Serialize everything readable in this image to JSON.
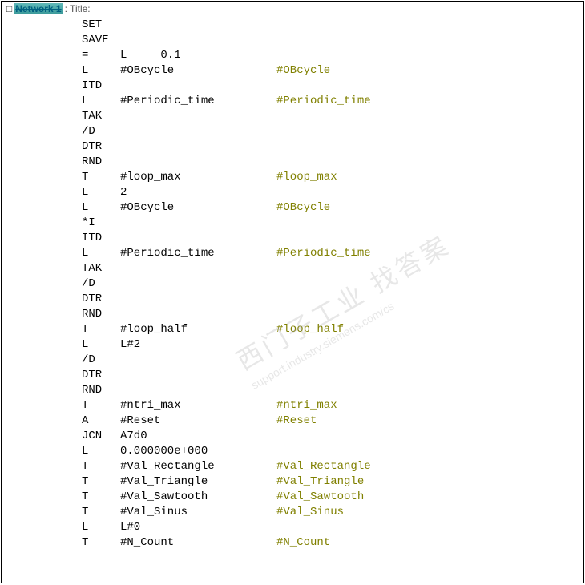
{
  "header": {
    "icon": "□",
    "title_strike": "Network 1",
    "title_rest": ": Title:"
  },
  "watermark": {
    "line1": "西门子工业 找答案",
    "line2": "support.industry.siemens.com/cs"
  },
  "code": {
    "lines": [
      {
        "op": "SET",
        "arg": "",
        "cmt": ""
      },
      {
        "op": "SAVE",
        "arg": "",
        "cmt": ""
      },
      {
        "op": "=",
        "arg": "L     0.1",
        "cmt": ""
      },
      {
        "op": "L",
        "arg": "#OBcycle",
        "cmt": "#OBcycle"
      },
      {
        "op": "ITD",
        "arg": "",
        "cmt": ""
      },
      {
        "op": "L",
        "arg": "#Periodic_time",
        "cmt": "#Periodic_time"
      },
      {
        "op": "TAK",
        "arg": "",
        "cmt": ""
      },
      {
        "op": "/D",
        "arg": "",
        "cmt": ""
      },
      {
        "op": "DTR",
        "arg": "",
        "cmt": ""
      },
      {
        "op": "RND",
        "arg": "",
        "cmt": ""
      },
      {
        "op": "T",
        "arg": "#loop_max",
        "cmt": "#loop_max"
      },
      {
        "op": "L",
        "arg": "2",
        "cmt": ""
      },
      {
        "op": "L",
        "arg": "#OBcycle",
        "cmt": "#OBcycle"
      },
      {
        "op": "*I",
        "arg": "",
        "cmt": ""
      },
      {
        "op": "ITD",
        "arg": "",
        "cmt": ""
      },
      {
        "op": "L",
        "arg": "#Periodic_time",
        "cmt": "#Periodic_time"
      },
      {
        "op": "TAK",
        "arg": "",
        "cmt": ""
      },
      {
        "op": "/D",
        "arg": "",
        "cmt": ""
      },
      {
        "op": "DTR",
        "arg": "",
        "cmt": ""
      },
      {
        "op": "RND",
        "arg": "",
        "cmt": ""
      },
      {
        "op": "T",
        "arg": "#loop_half",
        "cmt": "#loop_half"
      },
      {
        "op": "L",
        "arg": "L#2",
        "cmt": ""
      },
      {
        "op": "/D",
        "arg": "",
        "cmt": ""
      },
      {
        "op": "DTR",
        "arg": "",
        "cmt": ""
      },
      {
        "op": "RND",
        "arg": "",
        "cmt": ""
      },
      {
        "op": "T",
        "arg": "#ntri_max",
        "cmt": "#ntri_max"
      },
      {
        "op": "A",
        "arg": "#Reset",
        "cmt": "#Reset"
      },
      {
        "op": "JCN",
        "arg": "A7d0",
        "cmt": ""
      },
      {
        "op": "L",
        "arg": "0.000000e+000",
        "cmt": ""
      },
      {
        "op": "T",
        "arg": "#Val_Rectangle",
        "cmt": "#Val_Rectangle"
      },
      {
        "op": "T",
        "arg": "#Val_Triangle",
        "cmt": "#Val_Triangle"
      },
      {
        "op": "T",
        "arg": "#Val_Sawtooth",
        "cmt": "#Val_Sawtooth"
      },
      {
        "op": "T",
        "arg": "#Val_Sinus",
        "cmt": "#Val_Sinus"
      },
      {
        "op": "L",
        "arg": "L#0",
        "cmt": ""
      },
      {
        "op": "T",
        "arg": "#N_Count",
        "cmt": "#N_Count"
      }
    ]
  }
}
